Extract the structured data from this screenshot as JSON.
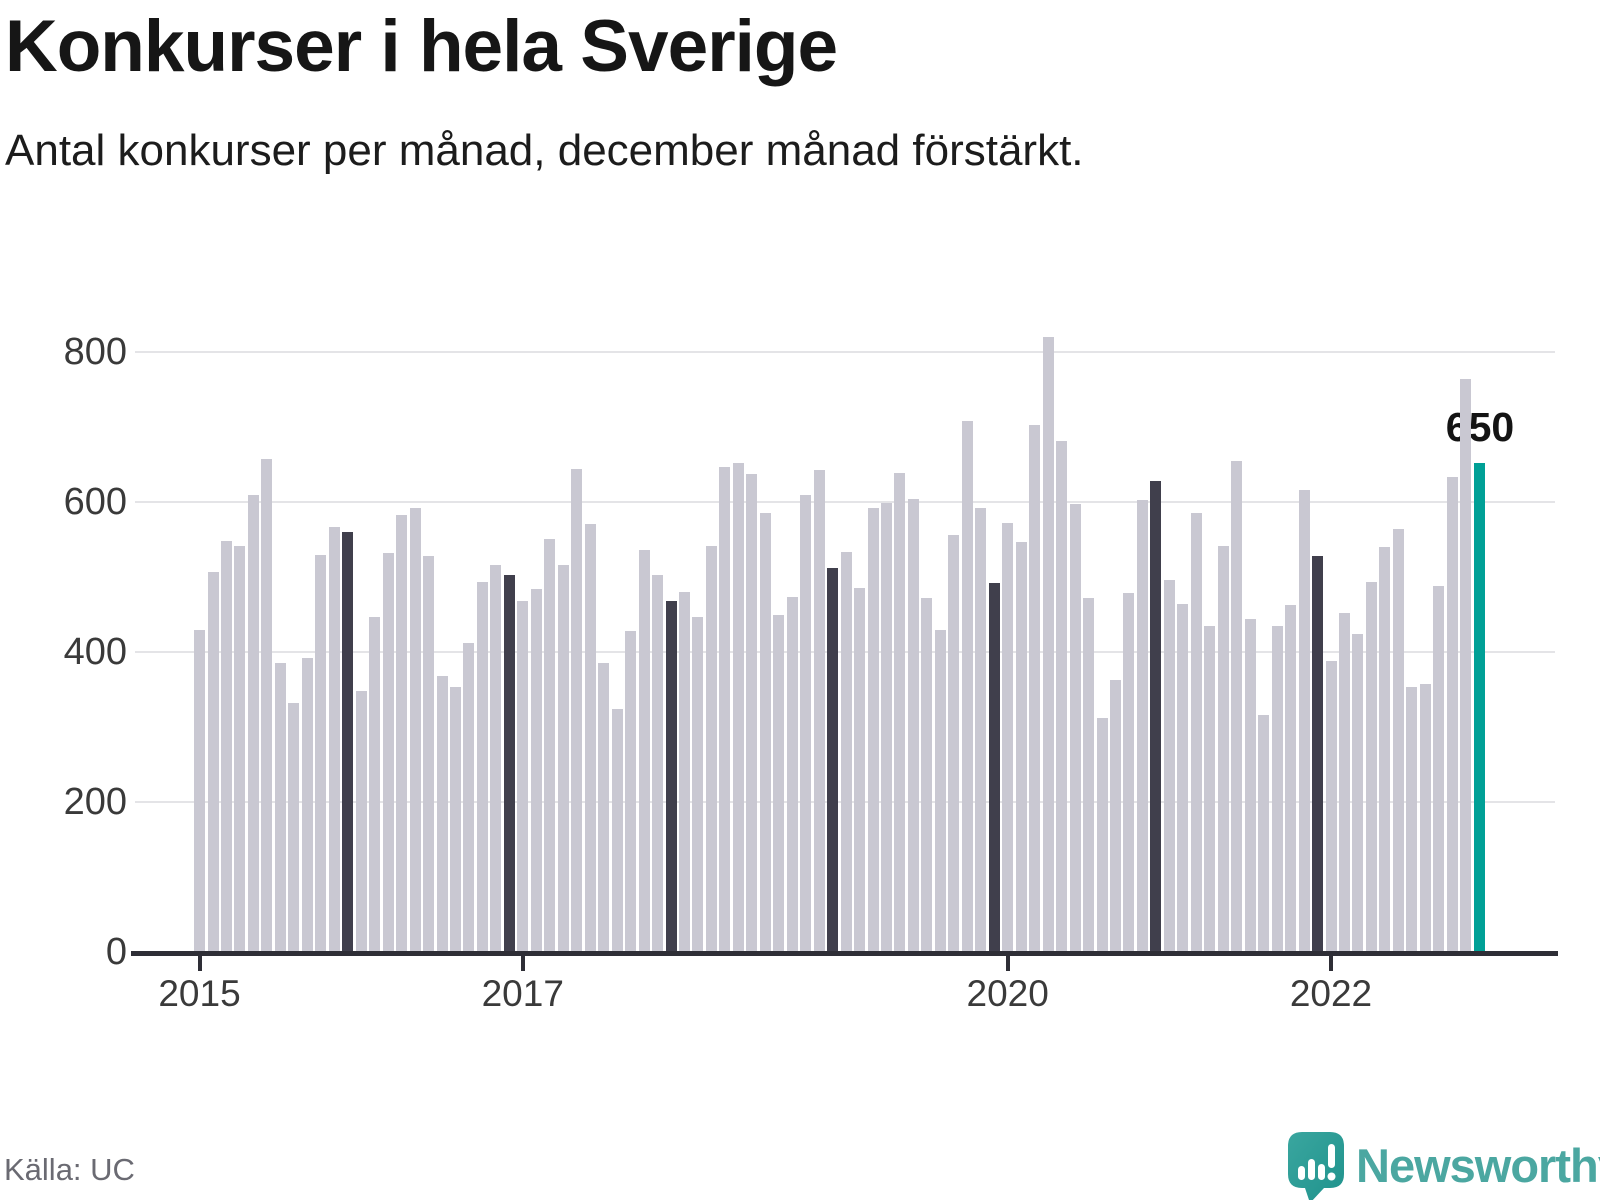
{
  "header": {
    "title": "Konkurser i hela Sverige",
    "subtitle": "Antal konkurser per månad, december månad förstärkt."
  },
  "footer": {
    "source": "Källa: UC",
    "brand": "Newsworthy"
  },
  "colors": {
    "bar_default": "#c9c8d2",
    "bar_december": "#403f4c",
    "bar_highlight": "#00a096",
    "axis": "#2e2e36",
    "grid": "#e4e4e7",
    "tick_label": "#3a3a3a",
    "brand_teal": "#4ba7a1"
  },
  "chart_data": {
    "type": "bar",
    "title": "Konkurser i hela Sverige",
    "xlabel": "",
    "ylabel": "",
    "ylim": [
      0,
      850
    ],
    "yticks": [
      0,
      200,
      400,
      600,
      800
    ],
    "year_ticks": [
      "2015",
      "2017",
      "2020",
      "2022"
    ],
    "grid": true,
    "december_emphasized": true,
    "series": [
      {
        "year": 2015,
        "values": [
          428,
          505,
          547,
          540,
          608,
          656,
          384,
          331,
          390,
          528,
          565,
          558
        ]
      },
      {
        "year": 2016,
        "values": [
          347,
          445,
          531,
          581,
          590,
          527,
          366,
          352,
          410,
          492,
          515,
          501
        ]
      },
      {
        "year": 2017,
        "values": [
          466,
          482,
          549,
          514,
          642,
          569,
          384,
          322,
          427,
          534,
          501,
          466
        ]
      },
      {
        "year": 2018,
        "values": [
          479,
          445,
          540,
          645,
          651,
          636,
          584,
          448,
          472,
          608,
          641,
          511
        ]
      },
      {
        "year": 2019,
        "values": [
          532,
          484,
          590,
          597,
          637,
          602,
          470,
          428,
          555,
          706,
          590,
          491
        ]
      },
      {
        "year": 2020,
        "values": [
          570,
          545,
          701,
          818,
          680,
          596,
          470,
          311,
          361,
          477,
          601,
          627
        ]
      },
      {
        "year": 2021,
        "values": [
          494,
          462,
          584,
          433,
          540,
          653,
          443,
          314,
          433,
          461,
          615,
          526
        ]
      },
      {
        "year": 2022,
        "values": [
          386,
          450,
          423,
          492,
          538,
          562,
          352,
          356,
          487,
          632,
          762,
          650
        ]
      }
    ],
    "highlight": {
      "year": 2022,
      "month": 12,
      "value": 650,
      "label": "650"
    }
  }
}
